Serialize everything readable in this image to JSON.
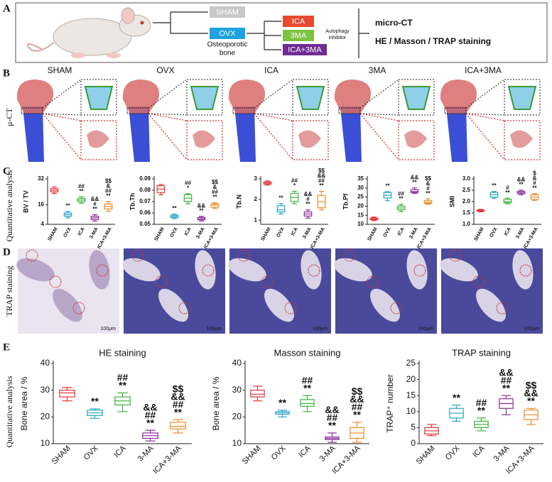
{
  "panel_a": {
    "label": "A",
    "sham": "SHAM",
    "ovx": "OVX",
    "osteoporotic": [
      "Osteoporotic",
      "bone"
    ],
    "treatments": [
      "ICA",
      "3MA",
      "ICA+3MA"
    ],
    "inhibitor": [
      "Autophagy",
      "inhibitor"
    ],
    "outputs": [
      "micro-CT",
      "HE / Masson / TRAP staining"
    ]
  },
  "panel_b": {
    "label": "B",
    "side_label": "μ-CT",
    "columns": [
      "SHAM",
      "OVX",
      "ICA",
      "3MA",
      "ICA+3MA"
    ]
  },
  "panel_c": {
    "label": "C",
    "side_label": "Quantitative analysis"
  },
  "panel_d": {
    "label": "D",
    "side_label": "TRAP staining",
    "scale_bar": "100μm"
  },
  "panel_e": {
    "label": "E",
    "side_label": "Quantitative analysis"
  },
  "chart_data": [
    {
      "type": "box",
      "ylabel": "BV / TV",
      "categories": [
        "SHAM",
        "OVX",
        "ICA",
        "3-MA",
        "ICA+3-MA"
      ],
      "colors": [
        "#e6333a",
        "#2aa6c8",
        "#3cb43c",
        "#8b2f9c",
        "#f08a24"
      ],
      "values": [
        [
          23,
          24,
          25,
          26,
          27
        ],
        [
          8,
          9,
          10,
          11,
          12
        ],
        [
          17,
          18,
          19,
          20,
          21
        ],
        [
          6,
          7,
          8,
          9,
          10
        ],
        [
          12,
          13.5,
          15,
          16.5,
          18
        ]
      ],
      "annotations": [
        [],
        [
          "**"
        ],
        [
          "##",
          "**"
        ],
        [
          "&&",
          "#",
          "**"
        ],
        [
          "$$",
          "&",
          "##",
          "**"
        ]
      ],
      "ylim": [
        4,
        32
      ],
      "yticks": [
        4,
        16,
        32
      ]
    },
    {
      "type": "box",
      "ylabel": "Tb.Th",
      "categories": [
        "SHAM",
        "OVX",
        "ICA",
        "3-MA",
        "ICA+3-MA"
      ],
      "colors": [
        "#e6333a",
        "#2aa6c8",
        "#3cb43c",
        "#8b2f9c",
        "#f08a24"
      ],
      "values": [
        [
          0.076,
          0.078,
          0.081,
          0.084,
          0.085
        ],
        [
          0.055,
          0.056,
          0.057,
          0.058,
          0.059
        ],
        [
          0.068,
          0.07,
          0.073,
          0.076,
          0.077
        ],
        [
          0.053,
          0.054,
          0.055,
          0.056,
          0.057
        ],
        [
          0.064,
          0.065,
          0.067,
          0.068,
          0.069
        ]
      ],
      "annotations": [
        [],
        [
          "**"
        ],
        [
          "##",
          "*"
        ],
        [
          "&&",
          "**"
        ],
        [
          "$$",
          "&",
          "##",
          "**"
        ]
      ],
      "ylim": [
        0.05,
        0.09
      ],
      "yticks": [
        0.05,
        0.06,
        0.07,
        0.08,
        0.09
      ]
    },
    {
      "type": "box",
      "ylabel": "Tb.N",
      "categories": [
        "SHAM",
        "OVX",
        "ICA",
        "3-MA",
        "ICA+3-MA"
      ],
      "colors": [
        "#e6333a",
        "#2aa6c8",
        "#3cb43c",
        "#8b2f9c",
        "#f08a24"
      ],
      "values": [
        [
          2.7,
          2.75,
          2.8,
          2.85,
          2.9
        ],
        [
          1.3,
          1.4,
          1.5,
          1.7,
          1.8
        ],
        [
          1.8,
          1.9,
          2.1,
          2.3,
          2.4
        ],
        [
          1.1,
          1.2,
          1.3,
          1.4,
          1.5
        ],
        [
          1.5,
          1.6,
          1.9,
          2.2,
          2.4
        ]
      ],
      "annotations": [
        [],
        [
          "**"
        ],
        [
          "##",
          "*"
        ],
        [
          "&&",
          "#",
          "**"
        ],
        [
          "$$",
          "&&",
          "##",
          "**"
        ]
      ],
      "ylim": [
        0.8,
        3
      ],
      "yticks": [
        1,
        2,
        3
      ]
    },
    {
      "type": "box",
      "ylabel": "Tb.Pf",
      "categories": [
        "SHAM",
        "OVX",
        "ICA",
        "3-MA",
        "ICA+3-MA"
      ],
      "colors": [
        "#e6333a",
        "#2aa6c8",
        "#3cb43c",
        "#8b2f9c",
        "#f08a24"
      ],
      "values": [
        [
          12,
          12.5,
          13,
          13.5,
          14
        ],
        [
          23,
          24.5,
          26,
          27.5,
          28
        ],
        [
          17,
          18,
          19,
          20,
          21
        ],
        [
          27,
          27.5,
          28,
          29,
          30
        ],
        [
          21,
          21.5,
          22,
          23,
          24
        ]
      ],
      "annotations": [
        [],
        [
          "**"
        ],
        [
          "##",
          "**"
        ],
        [
          "&&",
          "**"
        ],
        [
          "$$",
          "&",
          "#",
          "**"
        ]
      ],
      "ylim": [
        10,
        35
      ],
      "yticks": [
        10,
        15,
        20,
        25,
        30,
        35
      ]
    },
    {
      "type": "box",
      "ylabel": "SMI",
      "categories": [
        "SHAM",
        "OVX",
        "ICA",
        "3-MA",
        "ICA+3-MA"
      ],
      "colors": [
        "#e6333a",
        "#2aa6c8",
        "#3cb43c",
        "#8b2f9c",
        "#f08a24"
      ],
      "values": [
        [
          1.55,
          1.58,
          1.6,
          1.63,
          1.66
        ],
        [
          2.15,
          2.2,
          2.3,
          2.4,
          2.45
        ],
        [
          1.9,
          1.95,
          2.0,
          2.1,
          2.15
        ],
        [
          2.3,
          2.35,
          2.4,
          2.45,
          2.5
        ],
        [
          2.05,
          2.1,
          2.2,
          2.3,
          2.35
        ]
      ],
      "annotations": [
        [],
        [
          "**"
        ],
        [
          "#",
          "**"
        ],
        [
          "&&",
          "**"
        ],
        [
          "$",
          "&",
          "#",
          "**"
        ]
      ],
      "ylim": [
        1,
        3
      ],
      "yticks": [
        {
          "value": 1,
          "label": "1.0"
        },
        {
          "value": 1.5,
          "label": "1.5"
        },
        {
          "value": 2,
          "label": "2.0"
        },
        {
          "value": 2.5,
          "label": "2.5"
        },
        {
          "value": 3,
          "label": "3.0"
        }
      ]
    },
    {
      "type": "box",
      "title": "HE staining",
      "ylabel": "Bone area / %",
      "categories": [
        "SHAM",
        "OVX",
        "ICA",
        "3-MA",
        "ICA+3-MA"
      ],
      "colors": [
        "#e6333a",
        "#2aa6c8",
        "#3cb43c",
        "#8b2f9c",
        "#f08a24"
      ],
      "values": [
        [
          26,
          27.5,
          29,
          30,
          31
        ],
        [
          19.5,
          20.5,
          21.5,
          22.5,
          23
        ],
        [
          22,
          24.5,
          26,
          27.5,
          29
        ],
        [
          11,
          12,
          13,
          14,
          15
        ],
        [
          14,
          15.5,
          16.5,
          18,
          19
        ]
      ],
      "annotations": [
        [],
        [
          "**"
        ],
        [
          "##",
          "**"
        ],
        [
          "&&",
          "##",
          "**"
        ],
        [
          "$$",
          "&&",
          "##",
          "**"
        ]
      ],
      "ylim": [
        10,
        40
      ],
      "yticks": [
        10,
        20,
        30,
        40
      ]
    },
    {
      "type": "box",
      "title": "Masson staining",
      "ylabel": "Bone area / %",
      "categories": [
        "SHAM",
        "OVX",
        "ICA",
        "3-MA",
        "ICA+3-MA"
      ],
      "colors": [
        "#e6333a",
        "#2aa6c8",
        "#3cb43c",
        "#8b2f9c",
        "#f08a24"
      ],
      "values": [
        [
          26,
          27.5,
          28.5,
          30,
          31.5
        ],
        [
          20,
          21,
          21.5,
          22,
          22.5
        ],
        [
          22,
          24,
          25,
          26.5,
          28
        ],
        [
          10.5,
          11.5,
          12,
          12.5,
          14
        ],
        [
          10.5,
          12,
          14,
          16,
          18
        ]
      ],
      "annotations": [
        [],
        [
          "**"
        ],
        [
          "##",
          "**"
        ],
        [
          "&&",
          "##",
          "**"
        ],
        [
          "$$",
          "&&",
          "##",
          "**"
        ]
      ],
      "ylim": [
        10,
        40
      ],
      "yticks": [
        10,
        20,
        30,
        40
      ]
    },
    {
      "type": "box",
      "title": "TRAP staining",
      "ylabel": "TRAP⁺ number",
      "categories": [
        "SHAM",
        "OVX",
        "ICA",
        "3-MA",
        "ICA+3-MA"
      ],
      "colors": [
        "#e6333a",
        "#2aa6c8",
        "#3cb43c",
        "#8b2f9c",
        "#f08a24"
      ],
      "values": [
        [
          2.5,
          3,
          4,
          5,
          6
        ],
        [
          7,
          8,
          9.5,
          11,
          12
        ],
        [
          4,
          5,
          6,
          7,
          8
        ],
        [
          9,
          11,
          12.5,
          14,
          15
        ],
        [
          6,
          7.5,
          9,
          10.5,
          11
        ]
      ],
      "annotations": [
        [],
        [
          "**"
        ],
        [
          "##",
          "**"
        ],
        [
          "&&",
          "##",
          "**"
        ],
        [
          "$$",
          "&&",
          "**"
        ]
      ],
      "ylim": [
        0,
        25
      ],
      "yticks": [
        0,
        5,
        10,
        15,
        20,
        25
      ]
    }
  ]
}
